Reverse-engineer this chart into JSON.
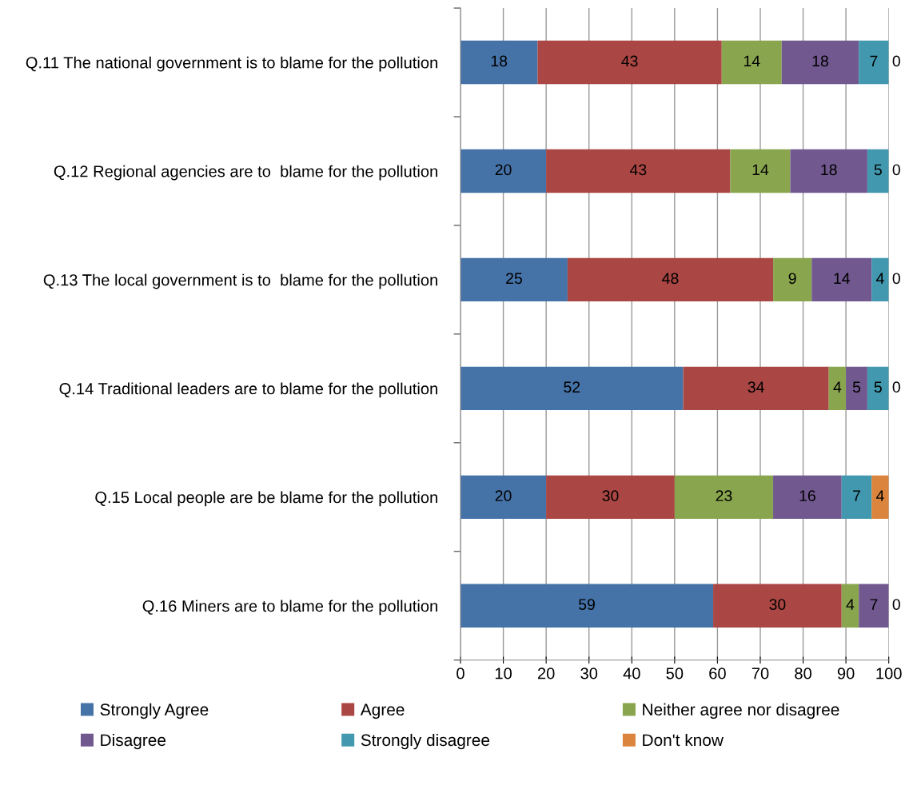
{
  "chart_data": {
    "type": "bar",
    "orientation": "horizontal",
    "stacked": true,
    "categories": [
      "Q.11 The national government is to blame for the pollution",
      "Q.12 Regional agencies are to  blame for the pollution",
      "Q.13 The local government is to  blame for the pollution",
      "Q.14 Traditional leaders are to blame for the pollution",
      "Q.15 Local people are be blame for the pollution",
      "Q.16 Miners are to blame for the pollution"
    ],
    "series": [
      {
        "name": "Strongly Agree",
        "color": "#4572a7",
        "values": [
          18,
          20,
          25,
          52,
          20,
          59
        ],
        "value_labels": [
          "18",
          "20",
          "25",
          "52",
          "20",
          "59"
        ]
      },
      {
        "name": "Agree",
        "color": "#aa4643",
        "values": [
          43,
          43,
          48,
          34,
          30,
          30
        ],
        "value_labels": [
          "43",
          "43",
          "48",
          "34",
          "30",
          "30"
        ]
      },
      {
        "name": "Neither agree nor disagree",
        "color": "#89a54e",
        "values": [
          14,
          14,
          9,
          4,
          23,
          4
        ],
        "value_labels": [
          "14",
          "14",
          "9",
          "4",
          "23",
          "4"
        ]
      },
      {
        "name": "Disagree",
        "color": "#71588f",
        "values": [
          18,
          18,
          14,
          5,
          16,
          7
        ],
        "value_labels": [
          "18",
          "18",
          "14",
          "5",
          "16",
          "7"
        ]
      },
      {
        "name": "Strongly disagree",
        "color": "#4198af",
        "values": [
          7,
          5,
          4,
          5,
          7,
          0
        ],
        "value_labels": [
          "7",
          "5",
          "4",
          "5",
          "7",
          "0"
        ]
      },
      {
        "name": "Don't know",
        "color": "#db843d",
        "values": [
          0,
          0,
          0,
          0,
          4,
          0
        ],
        "value_labels": [
          "0",
          "0",
          "0",
          "0",
          "4",
          null
        ]
      }
    ],
    "xlim": [
      0,
      100
    ],
    "xticks": [
      0,
      10,
      20,
      30,
      40,
      50,
      60,
      70,
      80,
      90,
      100
    ],
    "grid": "x",
    "legend": "bottom"
  }
}
